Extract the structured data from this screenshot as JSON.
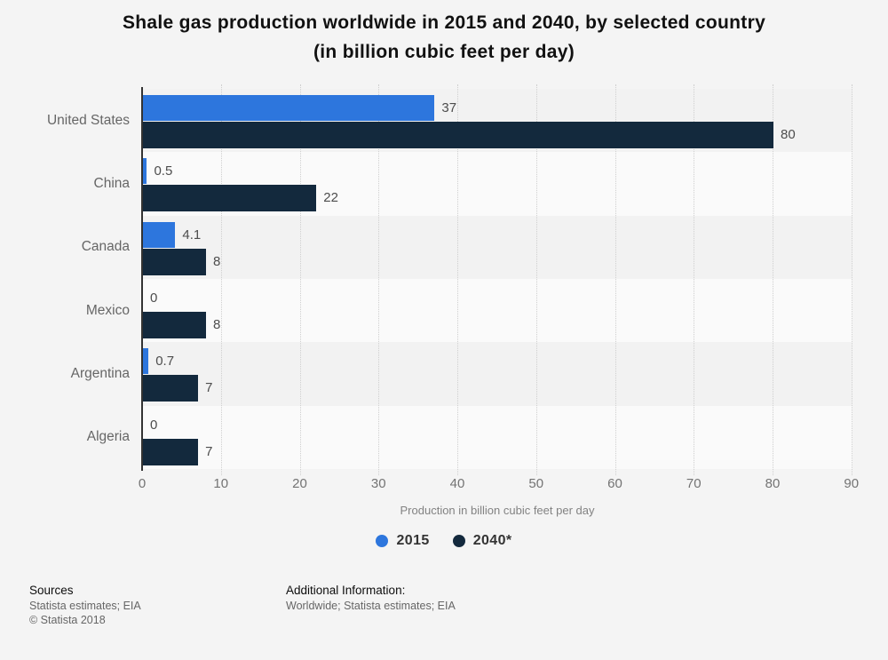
{
  "title": {
    "line1": "Shale gas production worldwide in 2015 and 2040, by selected country",
    "line2": "(in billion cubic feet per day)"
  },
  "chart_data": {
    "type": "bar",
    "orientation": "horizontal",
    "categories": [
      "United States",
      "China",
      "Canada",
      "Mexico",
      "Argentina",
      "Algeria"
    ],
    "series": [
      {
        "name": "2015",
        "color": "#2d76dd",
        "values": [
          37,
          0.5,
          4.1,
          0,
          0.7,
          0
        ],
        "display_values": [
          "37",
          "0.5",
          "4.1",
          "0",
          "0.7",
          "0"
        ]
      },
      {
        "name": "2040*",
        "color": "#13293d",
        "values": [
          80,
          22,
          8,
          8,
          7,
          7
        ],
        "display_values": [
          "80",
          "22",
          "8",
          "8",
          "7",
          "7"
        ]
      }
    ],
    "xlabel": "Production in billion cubic feet per day",
    "xlim": [
      0,
      90
    ],
    "xticks": [
      0,
      10,
      20,
      30,
      40,
      50,
      60,
      70,
      80,
      90
    ],
    "grid": "dotted-vertical",
    "legend_position": "bottom"
  },
  "legend": {
    "items": [
      {
        "label": "2015",
        "color": "#2d76dd"
      },
      {
        "label": "2040*",
        "color": "#13293d"
      }
    ]
  },
  "footer": {
    "sources_heading": "Sources",
    "sources_line": "Statista estimates; EIA",
    "copyright": "© Statista 2018",
    "additional_heading": "Additional Information:",
    "additional_line": "Worldwide; Statista estimates; EIA"
  },
  "colors": {
    "background": "#f4f4f4",
    "band_gray": "#f2f2f2",
    "band_light": "#fafafa",
    "grid": "#cfcfcf",
    "axis": "#333333",
    "value_text": "#4d4d4d",
    "category_text": "#666666",
    "tick_text": "#737373"
  }
}
